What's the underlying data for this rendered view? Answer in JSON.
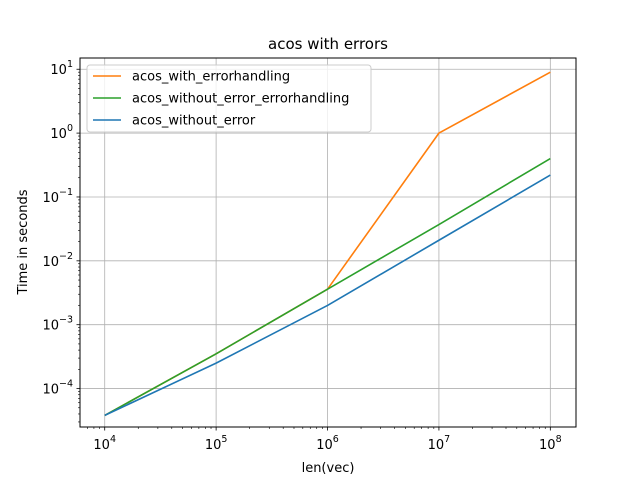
{
  "chart_data": {
    "type": "line",
    "title": "acos with errors",
    "xlabel": "len(vec)",
    "ylabel": "Time in seconds",
    "x_scale": "log",
    "y_scale": "log",
    "x": [
      10000,
      100000,
      1000000,
      10000000,
      100000000
    ],
    "xlim": [
      6000,
      170000000
    ],
    "ylim": [
      2.5e-05,
      15
    ],
    "grid": true,
    "legend_position": "top-left",
    "x_ticks": [
      {
        "value": 10000,
        "base": "10",
        "exp": "4"
      },
      {
        "value": 100000,
        "base": "10",
        "exp": "5"
      },
      {
        "value": 1000000,
        "base": "10",
        "exp": "6"
      },
      {
        "value": 10000000,
        "base": "10",
        "exp": "7"
      },
      {
        "value": 100000000,
        "base": "10",
        "exp": "8"
      }
    ],
    "y_ticks": [
      {
        "value": 0.0001,
        "base": "10",
        "exp": "−4"
      },
      {
        "value": 0.001,
        "base": "10",
        "exp": "−3"
      },
      {
        "value": 0.01,
        "base": "10",
        "exp": "−2"
      },
      {
        "value": 0.1,
        "base": "10",
        "exp": "−1"
      },
      {
        "value": 1,
        "base": "10",
        "exp": "0"
      },
      {
        "value": 10,
        "base": "10",
        "exp": "1"
      }
    ],
    "series": [
      {
        "name": "acos_with_errorhandling",
        "color": "#ff7f0e",
        "values": [
          3.8e-05,
          0.00035,
          0.0036,
          1.0,
          9.0
        ]
      },
      {
        "name": "acos_without_error_errorhandling",
        "color": "#2ca02c",
        "values": [
          3.8e-05,
          0.00035,
          0.0036,
          0.037,
          0.4
        ]
      },
      {
        "name": "acos_without_error",
        "color": "#1f77b4",
        "values": [
          3.8e-05,
          0.00025,
          0.002,
          0.021,
          0.22
        ]
      }
    ]
  }
}
